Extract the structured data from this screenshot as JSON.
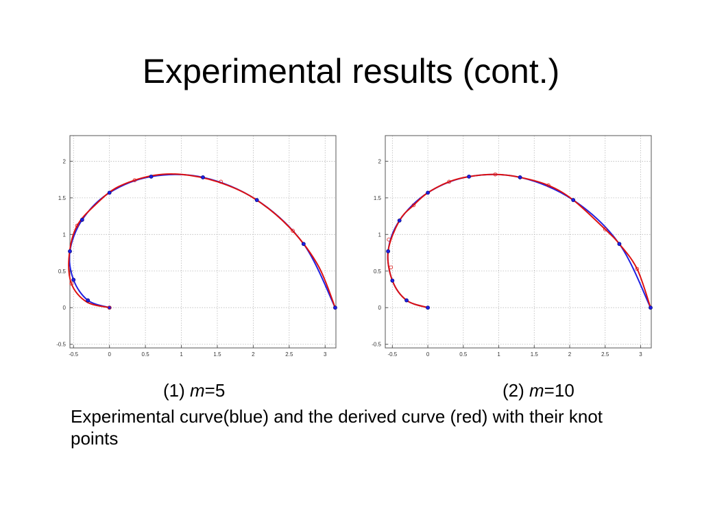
{
  "slide": {
    "title": "Experimental results (cont.)",
    "description": "Experimental curve(blue) and the derived curve (red) with their knot points"
  },
  "captions": [
    {
      "prefix": "(1) ",
      "var": "m",
      "eq": "=5"
    },
    {
      "prefix": "(2) ",
      "var": "m",
      "eq": "=10"
    }
  ],
  "colors": {
    "experimental": "#1f1fe0",
    "derived": "#dd1111",
    "grid": "#b8b8b8",
    "axes": "#555555"
  },
  "chart_data": [
    {
      "type": "line",
      "title": "",
      "xlabel": "",
      "ylabel": "",
      "xlim": [
        -0.55,
        3.15
      ],
      "ylim": [
        -0.55,
        2.35
      ],
      "xticks": [
        -0.5,
        0,
        0.5,
        1,
        1.5,
        2,
        2.5,
        3
      ],
      "xtick_labels": [
        "-0.5",
        "0",
        "0.5",
        "1",
        "1.5",
        "2",
        "2.5",
        "3"
      ],
      "yticks": [
        -0.5,
        0,
        0.5,
        1,
        1.5,
        2
      ],
      "ytick_labels": [
        "-0.5",
        "0",
        "0.5",
        "1",
        "1.5",
        "2"
      ],
      "grid": true,
      "series": [
        {
          "role": "experimental",
          "color": "blue",
          "x": [
            0,
            -0.3,
            -0.5,
            -0.55,
            -0.38,
            0,
            0.58,
            1.3,
            2.05,
            2.7,
            3.14
          ],
          "y": [
            0,
            0.1,
            0.38,
            0.77,
            1.2,
            1.57,
            1.79,
            1.78,
            1.47,
            0.87,
            0
          ],
          "knots": [
            [
              0,
              0
            ],
            [
              -0.3,
              0.1
            ],
            [
              -0.5,
              0.38
            ],
            [
              -0.55,
              0.77
            ],
            [
              -0.38,
              1.2
            ],
            [
              0,
              1.57
            ],
            [
              0.58,
              1.79
            ],
            [
              1.3,
              1.78
            ],
            [
              2.05,
              1.47
            ],
            [
              2.7,
              0.87
            ],
            [
              3.14,
              0
            ]
          ]
        },
        {
          "role": "derived",
          "color": "red",
          "x": [
            0,
            -0.32,
            -0.53,
            -0.56,
            -0.45,
            -0.18,
            0.12,
            0.58,
            1.0,
            1.5,
            2.0,
            2.5,
            2.9,
            3.14
          ],
          "y": [
            0,
            0.08,
            0.33,
            0.72,
            1.12,
            1.42,
            1.65,
            1.8,
            1.82,
            1.72,
            1.5,
            1.1,
            0.58,
            0
          ],
          "knots": [
            [
              0,
              0
            ],
            [
              -0.53,
              0.33
            ],
            [
              -0.45,
              1.12
            ],
            [
              0.35,
              1.74
            ],
            [
              1.55,
              1.72
            ],
            [
              2.55,
              1.05
            ]
          ]
        }
      ]
    },
    {
      "type": "line",
      "title": "",
      "xlabel": "",
      "ylabel": "",
      "xlim": [
        -0.6,
        3.15
      ],
      "ylim": [
        -0.55,
        2.35
      ],
      "xticks": [
        -0.5,
        0,
        0.5,
        1,
        1.5,
        2,
        2.5,
        3
      ],
      "xtick_labels": [
        "-0.5",
        "0",
        "0.5",
        "1",
        "1.5",
        "2",
        "2.5",
        "3"
      ],
      "yticks": [
        -0.5,
        0,
        0.5,
        1,
        1.5,
        2
      ],
      "ytick_labels": [
        "-0.5",
        "0",
        "0.5",
        "1",
        "1.5",
        "2"
      ],
      "grid": true,
      "series": [
        {
          "role": "experimental",
          "color": "blue",
          "x": [
            0,
            -0.3,
            -0.5,
            -0.56,
            -0.4,
            0,
            0.58,
            1.3,
            2.05,
            2.7,
            3.14
          ],
          "y": [
            0,
            0.1,
            0.37,
            0.77,
            1.19,
            1.57,
            1.79,
            1.78,
            1.47,
            0.87,
            0
          ],
          "knots": [
            [
              0,
              0
            ],
            [
              -0.3,
              0.1
            ],
            [
              -0.5,
              0.37
            ],
            [
              -0.56,
              0.77
            ],
            [
              -0.4,
              1.19
            ],
            [
              0,
              1.57
            ],
            [
              0.58,
              1.79
            ],
            [
              1.3,
              1.78
            ],
            [
              2.05,
              1.47
            ],
            [
              2.7,
              0.87
            ],
            [
              3.14,
              0
            ]
          ]
        },
        {
          "role": "derived",
          "color": "red",
          "x": [
            0,
            -0.3,
            -0.5,
            -0.56,
            -0.4,
            -0.2,
            0,
            0.3,
            0.58,
            0.95,
            1.3,
            1.7,
            2.05,
            2.5,
            2.7,
            2.95,
            3.14
          ],
          "y": [
            0,
            0.1,
            0.37,
            0.77,
            1.19,
            1.4,
            1.57,
            1.72,
            1.79,
            1.82,
            1.78,
            1.67,
            1.47,
            1.07,
            0.87,
            0.53,
            0
          ],
          "knots": [
            [
              -0.52,
              0.55
            ],
            [
              -0.55,
              0.93
            ],
            [
              -0.2,
              1.4
            ],
            [
              0.3,
              1.72
            ],
            [
              0.95,
              1.82
            ],
            [
              1.7,
              1.67
            ],
            [
              2.5,
              1.07
            ],
            [
              2.95,
              0.53
            ]
          ]
        }
      ]
    }
  ]
}
